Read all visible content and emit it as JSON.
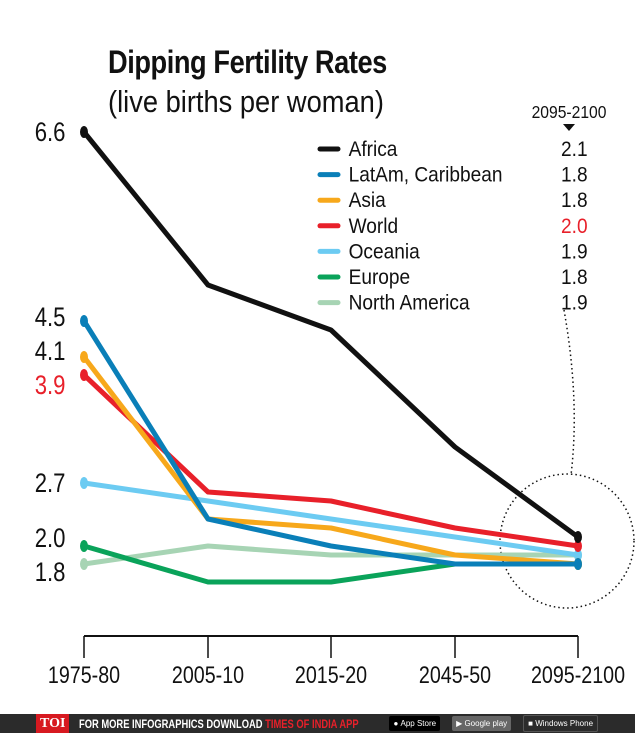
{
  "chart_data": {
    "type": "line",
    "title": "Dipping Fertility Rates",
    "subtitle": "(live births per woman)",
    "categories": [
      "1975-80",
      "2005-10",
      "2015-20",
      "2045-50",
      "2095-2100"
    ],
    "ylim": [
      1.0,
      6.6
    ],
    "y_tick_labels": [
      {
        "value": 6.6,
        "label": "6.6",
        "color": "#111111"
      },
      {
        "value": 4.5,
        "label": "4.5",
        "color": "#111111"
      },
      {
        "value": 4.1,
        "label": "4.1",
        "color": "#111111"
      },
      {
        "value": 3.9,
        "label": "3.9",
        "color": "#e8202a"
      },
      {
        "value": 2.7,
        "label": "2.7",
        "color": "#111111"
      },
      {
        "value": 2.0,
        "label": "2.0",
        "color": "#111111"
      },
      {
        "value": 1.8,
        "label": "1.8",
        "color": "#111111"
      }
    ],
    "grid": false,
    "legend_placement": "top-right",
    "legend_header": "2095-2100",
    "series": [
      {
        "name": "Africa",
        "color": "#111111",
        "values": [
          6.6,
          4.9,
          4.4,
          3.1,
          2.1
        ],
        "end_label": "2.1",
        "end_color": "#111111"
      },
      {
        "name": "LatAm, Caribbean",
        "color": "#0a7fb8",
        "values": [
          4.5,
          2.3,
          2.0,
          1.8,
          1.8
        ],
        "end_label": "1.8",
        "end_color": "#111111"
      },
      {
        "name": "Asia",
        "color": "#f7a81b",
        "values": [
          4.1,
          2.3,
          2.2,
          1.9,
          1.8
        ],
        "end_label": "1.8",
        "end_color": "#111111"
      },
      {
        "name": "World",
        "color": "#e8202a",
        "values": [
          3.9,
          2.6,
          2.5,
          2.2,
          2.0
        ],
        "end_label": "2.0",
        "end_color": "#e8202a"
      },
      {
        "name": "Oceania",
        "color": "#6ccbf2",
        "values": [
          2.7,
          2.5,
          2.3,
          2.1,
          1.9
        ],
        "end_label": "1.9",
        "end_color": "#111111"
      },
      {
        "name": "Europe",
        "color": "#0aa35a",
        "values": [
          2.0,
          1.6,
          1.6,
          1.8,
          1.8
        ],
        "end_label": "1.8",
        "end_color": "#111111"
      },
      {
        "name": "North America",
        "color": "#a7d4b4",
        "values": [
          1.8,
          2.0,
          1.9,
          1.9,
          1.9
        ],
        "end_label": "1.9",
        "end_color": "#111111"
      }
    ]
  },
  "footer": {
    "logo": "TOI",
    "text_white": "FOR MORE  INFOGRAPHICS DOWNLOAD ",
    "text_red": "TIMES OF INDIA  APP",
    "app_store": "App Store",
    "google_play": "Google play",
    "windows_phone": "Windows Phone"
  }
}
